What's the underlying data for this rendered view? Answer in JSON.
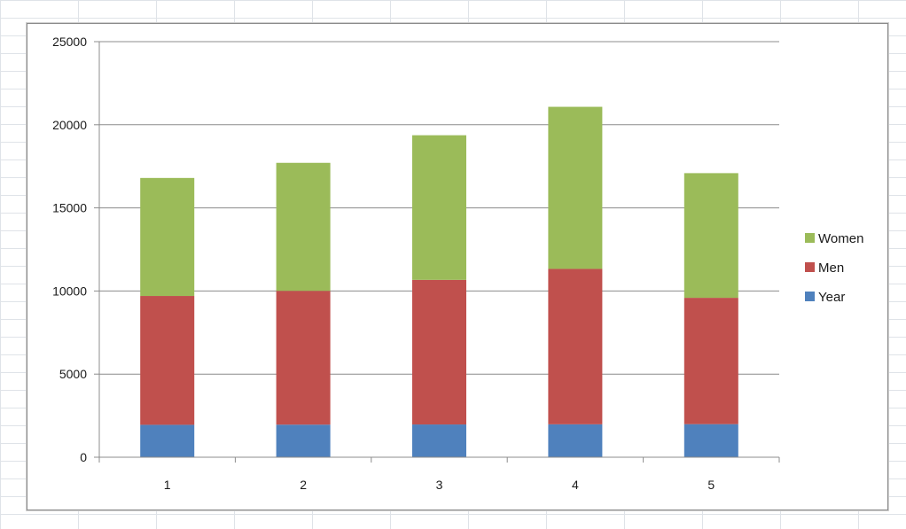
{
  "chart_data": {
    "type": "bar",
    "stacked": true,
    "categories": [
      "1",
      "2",
      "3",
      "4",
      "5"
    ],
    "series": [
      {
        "name": "Year",
        "values": [
          1950,
          1960,
          1970,
          1980,
          1990
        ],
        "color": "#4f81bd"
      },
      {
        "name": "Men",
        "values": [
          7750,
          8050,
          8700,
          9350,
          7600
        ],
        "color": "#c0504d"
      },
      {
        "name": "Women",
        "values": [
          7100,
          7700,
          8700,
          9750,
          7500
        ],
        "color": "#9bbb59"
      }
    ],
    "title": "",
    "xlabel": "",
    "ylabel": "",
    "ylim": [
      0,
      25000
    ],
    "yticks": [
      0,
      5000,
      10000,
      15000,
      20000,
      25000
    ],
    "grid": true,
    "legend_position": "right",
    "legend_order": [
      "Women",
      "Men",
      "Year"
    ]
  }
}
